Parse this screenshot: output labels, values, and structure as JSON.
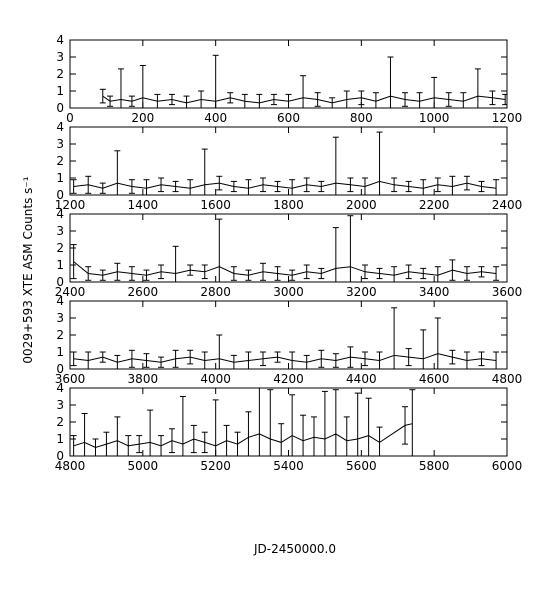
{
  "chart_data": [
    {
      "type": "errorbar",
      "xlim": [
        0,
        1200
      ],
      "xticks": [
        0,
        200,
        400,
        600,
        800,
        1000,
        1200
      ],
      "ylim": [
        0,
        4
      ],
      "yticks": [
        0,
        1,
        2,
        3,
        4
      ],
      "series": [
        {
          "color": "#000000",
          "x": [
            90,
            110,
            140,
            170,
            200,
            240,
            280,
            320,
            360,
            400,
            440,
            480,
            520,
            560,
            600,
            640,
            680,
            720,
            760,
            800,
            840,
            880,
            920,
            960,
            1000,
            1040,
            1080,
            1120,
            1160,
            1195
          ],
          "values": [
            0.7,
            0.4,
            0.5,
            0.4,
            0.6,
            0.4,
            0.5,
            0.3,
            0.5,
            0.4,
            0.6,
            0.4,
            0.3,
            0.5,
            0.4,
            0.6,
            0.5,
            0.3,
            0.5,
            0.6,
            0.4,
            0.7,
            0.5,
            0.4,
            0.6,
            0.5,
            0.4,
            0.7,
            0.6,
            0.5
          ],
          "errors": [
            0.4,
            0.3,
            1.8,
            0.3,
            1.9,
            0.4,
            0.3,
            0.4,
            0.5,
            2.7,
            0.3,
            0.4,
            0.5,
            0.3,
            0.4,
            1.3,
            0.4,
            0.3,
            0.5,
            0.4,
            0.5,
            2.3,
            0.4,
            0.5,
            1.2,
            0.4,
            0.5,
            1.6,
            0.4,
            0.3
          ]
        }
      ]
    },
    {
      "type": "errorbar",
      "xlim": [
        1200,
        2400
      ],
      "xticks": [
        1200,
        1400,
        1600,
        1800,
        2000,
        2200,
        2400
      ],
      "ylim": [
        0,
        4
      ],
      "yticks": [
        0,
        1,
        2,
        3,
        4
      ],
      "series": [
        {
          "color": "#000000",
          "x": [
            1210,
            1250,
            1290,
            1330,
            1370,
            1410,
            1450,
            1490,
            1530,
            1570,
            1610,
            1650,
            1690,
            1730,
            1770,
            1810,
            1850,
            1890,
            1930,
            1970,
            2010,
            2050,
            2090,
            2130,
            2170,
            2210,
            2250,
            2290,
            2330,
            2370
          ],
          "values": [
            0.5,
            0.6,
            0.4,
            0.7,
            0.5,
            0.4,
            0.6,
            0.5,
            0.4,
            0.6,
            0.7,
            0.5,
            0.4,
            0.6,
            0.5,
            0.4,
            0.6,
            0.5,
            0.7,
            0.6,
            0.5,
            0.8,
            0.6,
            0.5,
            0.4,
            0.6,
            0.5,
            0.7,
            0.5,
            0.4
          ],
          "errors": [
            0.4,
            0.5,
            0.3,
            1.9,
            0.4,
            0.5,
            0.4,
            0.3,
            0.5,
            2.1,
            0.4,
            0.3,
            0.5,
            0.4,
            0.3,
            0.5,
            0.4,
            0.3,
            2.7,
            0.4,
            0.5,
            2.9,
            0.4,
            0.3,
            0.5,
            0.4,
            0.6,
            0.4,
            0.3,
            0.5
          ]
        }
      ]
    },
    {
      "type": "errorbar",
      "xlim": [
        2400,
        3600
      ],
      "xticks": [
        2400,
        2600,
        2800,
        3000,
        3200,
        3400,
        3600
      ],
      "ylim": [
        0,
        4
      ],
      "yticks": [
        0,
        1,
        2,
        3,
        4
      ],
      "series": [
        {
          "color": "#000000",
          "x": [
            2410,
            2450,
            2490,
            2530,
            2570,
            2610,
            2650,
            2690,
            2730,
            2770,
            2810,
            2850,
            2890,
            2930,
            2970,
            3010,
            3050,
            3090,
            3130,
            3170,
            3210,
            3250,
            3290,
            3330,
            3370,
            3410,
            3450,
            3490,
            3530,
            3570
          ],
          "values": [
            1.2,
            0.5,
            0.4,
            0.6,
            0.5,
            0.4,
            0.6,
            0.5,
            0.7,
            0.6,
            0.9,
            0.5,
            0.4,
            0.6,
            0.5,
            0.4,
            0.6,
            0.5,
            0.8,
            0.9,
            0.6,
            0.5,
            0.4,
            0.6,
            0.5,
            0.4,
            0.7,
            0.5,
            0.6,
            0.5
          ],
          "errors": [
            1.0,
            0.4,
            0.3,
            0.5,
            0.4,
            0.3,
            0.4,
            1.6,
            0.3,
            0.4,
            2.8,
            0.4,
            0.3,
            0.5,
            0.4,
            0.3,
            0.4,
            0.3,
            2.4,
            3.0,
            0.4,
            0.3,
            0.5,
            0.4,
            0.3,
            0.5,
            0.6,
            0.4,
            0.3,
            0.4
          ]
        }
      ]
    },
    {
      "type": "errorbar",
      "xlim": [
        3600,
        4800
      ],
      "xticks": [
        3600,
        3800,
        4000,
        4200,
        4400,
        4600,
        4800
      ],
      "ylim": [
        0,
        4
      ],
      "yticks": [
        0,
        1,
        2,
        3,
        4
      ],
      "series": [
        {
          "color": "#000000",
          "x": [
            3610,
            3650,
            3690,
            3730,
            3770,
            3810,
            3850,
            3890,
            3930,
            3970,
            4010,
            4050,
            4090,
            4130,
            4170,
            4210,
            4250,
            4290,
            4330,
            4370,
            4410,
            4450,
            4490,
            4530,
            4570,
            4610,
            4650,
            4690,
            4730,
            4770
          ],
          "values": [
            0.6,
            0.5,
            0.7,
            0.4,
            0.6,
            0.5,
            0.4,
            0.6,
            0.7,
            0.5,
            0.6,
            0.4,
            0.5,
            0.6,
            0.7,
            0.5,
            0.4,
            0.6,
            0.5,
            0.7,
            0.6,
            0.5,
            0.8,
            0.7,
            0.6,
            0.9,
            0.7,
            0.5,
            0.6,
            0.5
          ],
          "errors": [
            0.4,
            0.5,
            0.3,
            0.4,
            0.5,
            0.4,
            0.3,
            0.5,
            0.4,
            0.5,
            1.4,
            0.4,
            0.5,
            0.4,
            0.3,
            0.5,
            0.4,
            0.5,
            0.4,
            0.6,
            0.4,
            0.5,
            2.8,
            0.5,
            1.7,
            2.1,
            0.4,
            0.5,
            0.4,
            0.5
          ]
        }
      ]
    },
    {
      "type": "errorbar",
      "xlim": [
        4800,
        6000
      ],
      "xticks": [
        4800,
        5000,
        5200,
        5400,
        5600,
        5800,
        6000
      ],
      "ylim": [
        0,
        4
      ],
      "yticks": [
        0,
        1,
        2,
        3,
        4
      ],
      "xlabel": "JD-2450000.0",
      "series": [
        {
          "color": "#000000",
          "x": [
            4810,
            4840,
            4870,
            4900,
            4930,
            4960,
            4990,
            5020,
            5050,
            5080,
            5110,
            5140,
            5170,
            5200,
            5230,
            5260,
            5290,
            5320,
            5350,
            5380,
            5410,
            5440,
            5470,
            5500,
            5530,
            5560,
            5590,
            5620,
            5650,
            5720,
            5740
          ],
          "values": [
            0.6,
            0.8,
            0.5,
            0.7,
            0.9,
            0.6,
            0.7,
            0.8,
            0.6,
            0.9,
            0.7,
            1.0,
            0.8,
            0.6,
            0.9,
            0.7,
            1.1,
            1.3,
            1.0,
            0.8,
            1.2,
            0.9,
            1.1,
            1.0,
            1.3,
            0.9,
            1.0,
            1.2,
            0.8,
            1.8,
            1.9
          ],
          "errors": [
            0.6,
            1.7,
            0.5,
            0.7,
            1.4,
            0.6,
            0.5,
            1.9,
            0.6,
            0.7,
            2.8,
            0.8,
            0.6,
            2.7,
            0.9,
            0.7,
            1.5,
            3.0,
            2.9,
            1.1,
            2.4,
            1.5,
            1.2,
            2.8,
            2.6,
            1.4,
            2.7,
            2.2,
            0.9,
            1.1,
            2.0
          ]
        }
      ]
    }
  ],
  "ylabel": "0029+593 XTE ASM Counts s⁻¹"
}
